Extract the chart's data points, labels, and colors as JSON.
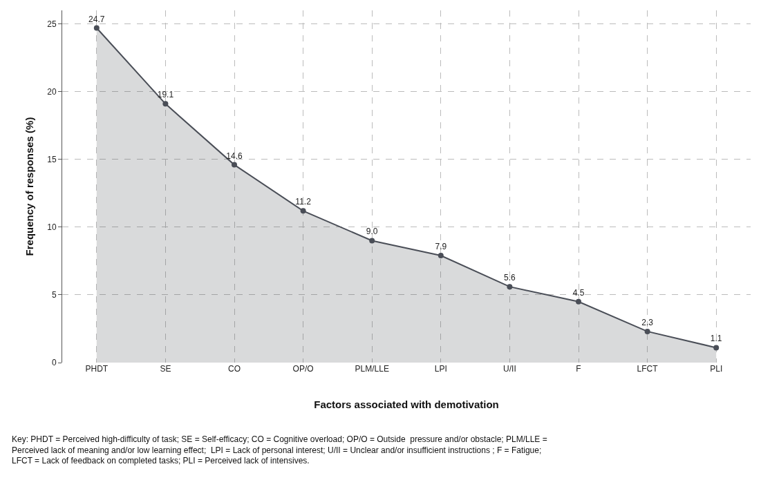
{
  "chart_data": {
    "type": "area",
    "xlabel": "Factors associated with demotivation",
    "ylabel": "Frequency of responses (%)",
    "categories": [
      "PHDT",
      "SE",
      "CO",
      "OP/O",
      "PLM/LLE",
      "LPI",
      "U/II",
      "F",
      "LFCT",
      "PLI"
    ],
    "series": [
      {
        "color": "#4a4e57",
        "values": [
          24.7,
          19.1,
          14.6,
          11.2,
          9.0,
          7.9,
          5.6,
          4.5,
          2.3,
          1.1
        ],
        "value_labels": [
          "24.7",
          "19.1",
          "14.6",
          "11.2",
          "9.0",
          "7.9",
          "5.6",
          "4.5",
          "2.3",
          "1.1"
        ]
      }
    ],
    "ylim": [
      0,
      26
    ],
    "yticks": [
      0,
      5,
      10,
      15,
      20,
      25
    ],
    "grid": true,
    "marker": "circle",
    "line_style": "solid",
    "annotations": [
      "Key: PHDT = Perceived high-difficulty of task; SE = Self-efficacy; CO = Cognitive overload; OP/O = Outside  pressure and/or obstacle; PLM/LLE =\nPerceived lack of meaning and/or low learning effect;  LPI = Lack of personal interest; U/II = Unclear and/or insufficient instructions ; F = Fatigue;\nLFCT = Lack of feedback on completed tasks; PLI = Perceived lack of intensives."
    ]
  }
}
